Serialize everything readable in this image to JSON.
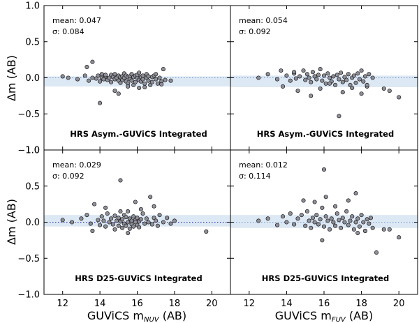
{
  "axes": {
    "ylabel": "Δm (AB)",
    "xlabel_left": {
      "text": "GUViCS m",
      "sub": "NUV",
      "suffix": " (AB)"
    },
    "xlabel_right": {
      "text": "GUViCS m",
      "sub": "FUV",
      "suffix": " (AB)"
    },
    "xlim": [
      11,
      21
    ],
    "ylim": [
      -1.0,
      1.0
    ],
    "xticks": [
      12,
      14,
      16,
      18,
      20
    ],
    "yticks": [
      1.0,
      0.5,
      0.0,
      -0.5,
      -1.0
    ],
    "ytick_labels": [
      "1.0",
      "0.5",
      "0.0",
      "−0.5",
      "−1.0"
    ]
  },
  "chart_data": [
    {
      "type": "scatter",
      "title": "HRS Asym.-GUViCS Integrated",
      "mean_label": "mean:  0.047",
      "sigma_label": "σ: 0.084",
      "mean": 0.047,
      "sigma": 0.084,
      "band": [
        -0.12,
        0.02
      ],
      "line_color": "#7799cc",
      "x": [
        12.0,
        12.3,
        12.8,
        13.2,
        13.4,
        13.6,
        13.6,
        13.8,
        13.9,
        14.0,
        14.1,
        14.1,
        14.2,
        14.3,
        14.3,
        14.4,
        14.5,
        14.6,
        14.6,
        14.7,
        14.8,
        14.8,
        14.9,
        15.0,
        15.0,
        15.1,
        15.1,
        15.2,
        15.2,
        15.3,
        15.3,
        15.4,
        15.4,
        15.5,
        15.5,
        15.6,
        15.6,
        15.7,
        15.7,
        15.8,
        15.8,
        15.9,
        15.9,
        16.0,
        16.0,
        16.1,
        16.1,
        16.2,
        16.2,
        16.3,
        16.3,
        16.4,
        16.5,
        16.5,
        16.6,
        16.6,
        16.7,
        16.8,
        16.8,
        16.9,
        17.0,
        17.0,
        17.1,
        17.2,
        17.3,
        17.4,
        17.5,
        17.8,
        13.3,
        14.0,
        15.5,
        16.1,
        14.8,
        15.0,
        16.4,
        17.3
      ],
      "y": [
        0.02,
        0.0,
        -0.02,
        0.03,
        -0.04,
        0.0,
        0.22,
        -0.01,
        0.03,
        -0.05,
        0.0,
        0.05,
        -0.02,
        0.02,
        0.04,
        -0.03,
        0.0,
        0.04,
        -0.06,
        0.01,
        -0.02,
        0.05,
        0.0,
        -0.04,
        0.03,
        0.01,
        -0.07,
        0.02,
        -0.03,
        0.06,
        0.0,
        -0.05,
        0.03,
        0.01,
        -0.08,
        0.02,
        -0.02,
        0.05,
        -0.04,
        0.01,
        -0.1,
        0.03,
        -0.06,
        0.0,
        0.04,
        -0.03,
        0.07,
        0.01,
        -0.05,
        -0.02,
        0.03,
        -0.08,
        0.0,
        0.05,
        -0.04,
        0.02,
        -0.1,
        0.01,
        -0.06,
        0.03,
        -0.02,
        0.05,
        -0.08,
        0.0,
        -0.05,
        0.12,
        -0.03,
        -0.04,
        0.15,
        -0.35,
        -0.12,
        -0.14,
        -0.18,
        -0.22,
        -0.13,
        -0.09
      ]
    },
    {
      "type": "scatter",
      "title": "HRS Asym.-GUViCS Integrated",
      "mean_label": "mean:  0.054",
      "sigma_label": "σ: 0.092",
      "mean": 0.054,
      "sigma": 0.092,
      "band": [
        -0.13,
        0.03
      ],
      "line_color": "#7799cc",
      "x": [
        12.5,
        13.0,
        13.5,
        13.7,
        14.0,
        14.2,
        14.4,
        14.5,
        14.7,
        14.9,
        15.0,
        15.1,
        15.2,
        15.3,
        15.4,
        15.5,
        15.6,
        15.7,
        15.8,
        15.9,
        16.0,
        16.1,
        16.2,
        16.3,
        16.4,
        16.5,
        16.6,
        16.7,
        16.8,
        16.9,
        17.0,
        17.1,
        17.2,
        17.3,
        17.4,
        17.5,
        17.6,
        17.7,
        17.8,
        17.9,
        18.0,
        18.1,
        18.2,
        18.3,
        18.4,
        18.6,
        19.2,
        19.5,
        20.0,
        13.8,
        14.6,
        15.8,
        16.3,
        17.0,
        17.5,
        18.0,
        16.8,
        15.3,
        14.4,
        18.3
      ],
      "y": [
        0.0,
        0.05,
        -0.02,
        0.1,
        0.03,
        -0.04,
        0.06,
        -0.01,
        0.02,
        0.1,
        -0.03,
        0.05,
        0.0,
        -0.06,
        0.08,
        0.02,
        -0.02,
        0.04,
        0.12,
        -0.04,
        0.03,
        -0.08,
        0.06,
        0.0,
        -0.05,
        0.02,
        -0.1,
        0.04,
        -0.02,
        0.07,
        -0.06,
        0.01,
        -0.03,
        0.05,
        -0.1,
        0.0,
        0.03,
        -0.07,
        0.06,
        -0.02,
        0.1,
        -0.05,
        0.02,
        -0.12,
        0.05,
        0.0,
        -0.15,
        -0.18,
        -0.27,
        -0.12,
        -0.18,
        -0.15,
        -0.08,
        -0.2,
        -0.14,
        -0.22,
        -0.53,
        -0.25,
        0.08,
        -0.1
      ]
    },
    {
      "type": "scatter",
      "title": "HRS D25-GUViCS Integrated",
      "mean_label": "mean: 0.029",
      "sigma_label": "σ: 0.092",
      "mean": 0.029,
      "sigma": 0.092,
      "band": [
        -0.06,
        0.1
      ],
      "line_color": "#2222aa",
      "x": [
        12.0,
        12.5,
        13.0,
        13.3,
        13.5,
        13.7,
        13.9,
        14.0,
        14.1,
        14.2,
        14.3,
        14.4,
        14.5,
        14.6,
        14.7,
        14.8,
        14.9,
        15.0,
        15.0,
        15.1,
        15.1,
        15.2,
        15.2,
        15.3,
        15.3,
        15.4,
        15.4,
        15.5,
        15.5,
        15.6,
        15.6,
        15.7,
        15.7,
        15.8,
        15.8,
        15.9,
        15.9,
        16.0,
        16.0,
        16.1,
        16.1,
        16.2,
        16.3,
        16.4,
        16.5,
        16.6,
        16.7,
        16.8,
        16.9,
        17.0,
        17.1,
        17.2,
        17.4,
        17.6,
        17.8,
        18.0,
        19.7,
        13.6,
        14.3,
        15.1,
        15.5,
        16.2,
        16.9,
        14.8,
        15.9
      ],
      "y": [
        0.03,
        0.0,
        0.05,
        0.1,
        -0.02,
        0.25,
        0.03,
        -0.04,
        0.08,
        0.02,
        -0.06,
        0.12,
        0.0,
        0.05,
        -0.03,
        0.09,
        0.02,
        -0.05,
        0.06,
        0.58,
        0.01,
        -0.08,
        0.04,
        0.1,
        -0.02,
        0.07,
        -0.05,
        0.15,
        0.0,
        -0.09,
        0.05,
        0.02,
        -0.03,
        0.08,
        -0.06,
        0.03,
        0.0,
        -0.04,
        0.06,
        0.01,
        -0.07,
        0.04,
        0.12,
        -0.02,
        0.05,
        0.0,
        0.35,
        -0.03,
        0.06,
        0.02,
        -0.05,
        0.1,
        0.0,
        0.06,
        -0.02,
        0.02,
        -0.13,
        -0.12,
        0.2,
        0.15,
        -0.15,
        0.18,
        0.22,
        -0.1,
        0.28
      ]
    },
    {
      "type": "scatter",
      "title": "HRS D25-GUViCS Integrated",
      "mean_label": "mean: 0.012",
      "sigma_label": "σ: 0.114",
      "mean": 0.012,
      "sigma": 0.114,
      "band": [
        -0.08,
        0.1
      ],
      "line_color": "#7799cc",
      "x": [
        12.5,
        13.0,
        13.5,
        13.8,
        14.0,
        14.2,
        14.4,
        14.6,
        14.8,
        15.0,
        15.1,
        15.2,
        15.3,
        15.4,
        15.5,
        15.6,
        15.7,
        15.8,
        15.9,
        16.0,
        16.1,
        16.2,
        16.3,
        16.4,
        16.5,
        16.6,
        16.7,
        16.8,
        16.9,
        17.0,
        17.1,
        17.2,
        17.3,
        17.4,
        17.5,
        17.6,
        17.7,
        17.8,
        17.9,
        18.0,
        18.1,
        18.2,
        18.3,
        18.4,
        18.5,
        18.6,
        19.2,
        19.5,
        20.0,
        14.9,
        15.5,
        16.1,
        16.6,
        17.3,
        17.8,
        18.2,
        16.0,
        17.7,
        15.9,
        18.8
      ],
      "y": [
        0.02,
        0.05,
        -0.04,
        0.08,
        0.0,
        0.12,
        -0.03,
        0.05,
        0.1,
        -0.05,
        0.15,
        0.02,
        -0.08,
        0.06,
        0.0,
        0.1,
        -0.03,
        0.04,
        0.2,
        -0.06,
        0.08,
        0.02,
        -0.1,
        0.05,
        0.0,
        -0.05,
        0.12,
        0.03,
        -0.08,
        0.06,
        0.0,
        0.15,
        -0.04,
        0.02,
        0.08,
        -0.1,
        0.0,
        0.05,
        -0.06,
        0.1,
        0.0,
        -0.12,
        0.04,
        -0.02,
        0.06,
        -0.08,
        -0.1,
        -0.1,
        -0.21,
        0.3,
        0.28,
        0.35,
        0.22,
        0.3,
        -0.15,
        -0.12,
        0.73,
        0.4,
        -0.25,
        -0.42
      ]
    }
  ]
}
